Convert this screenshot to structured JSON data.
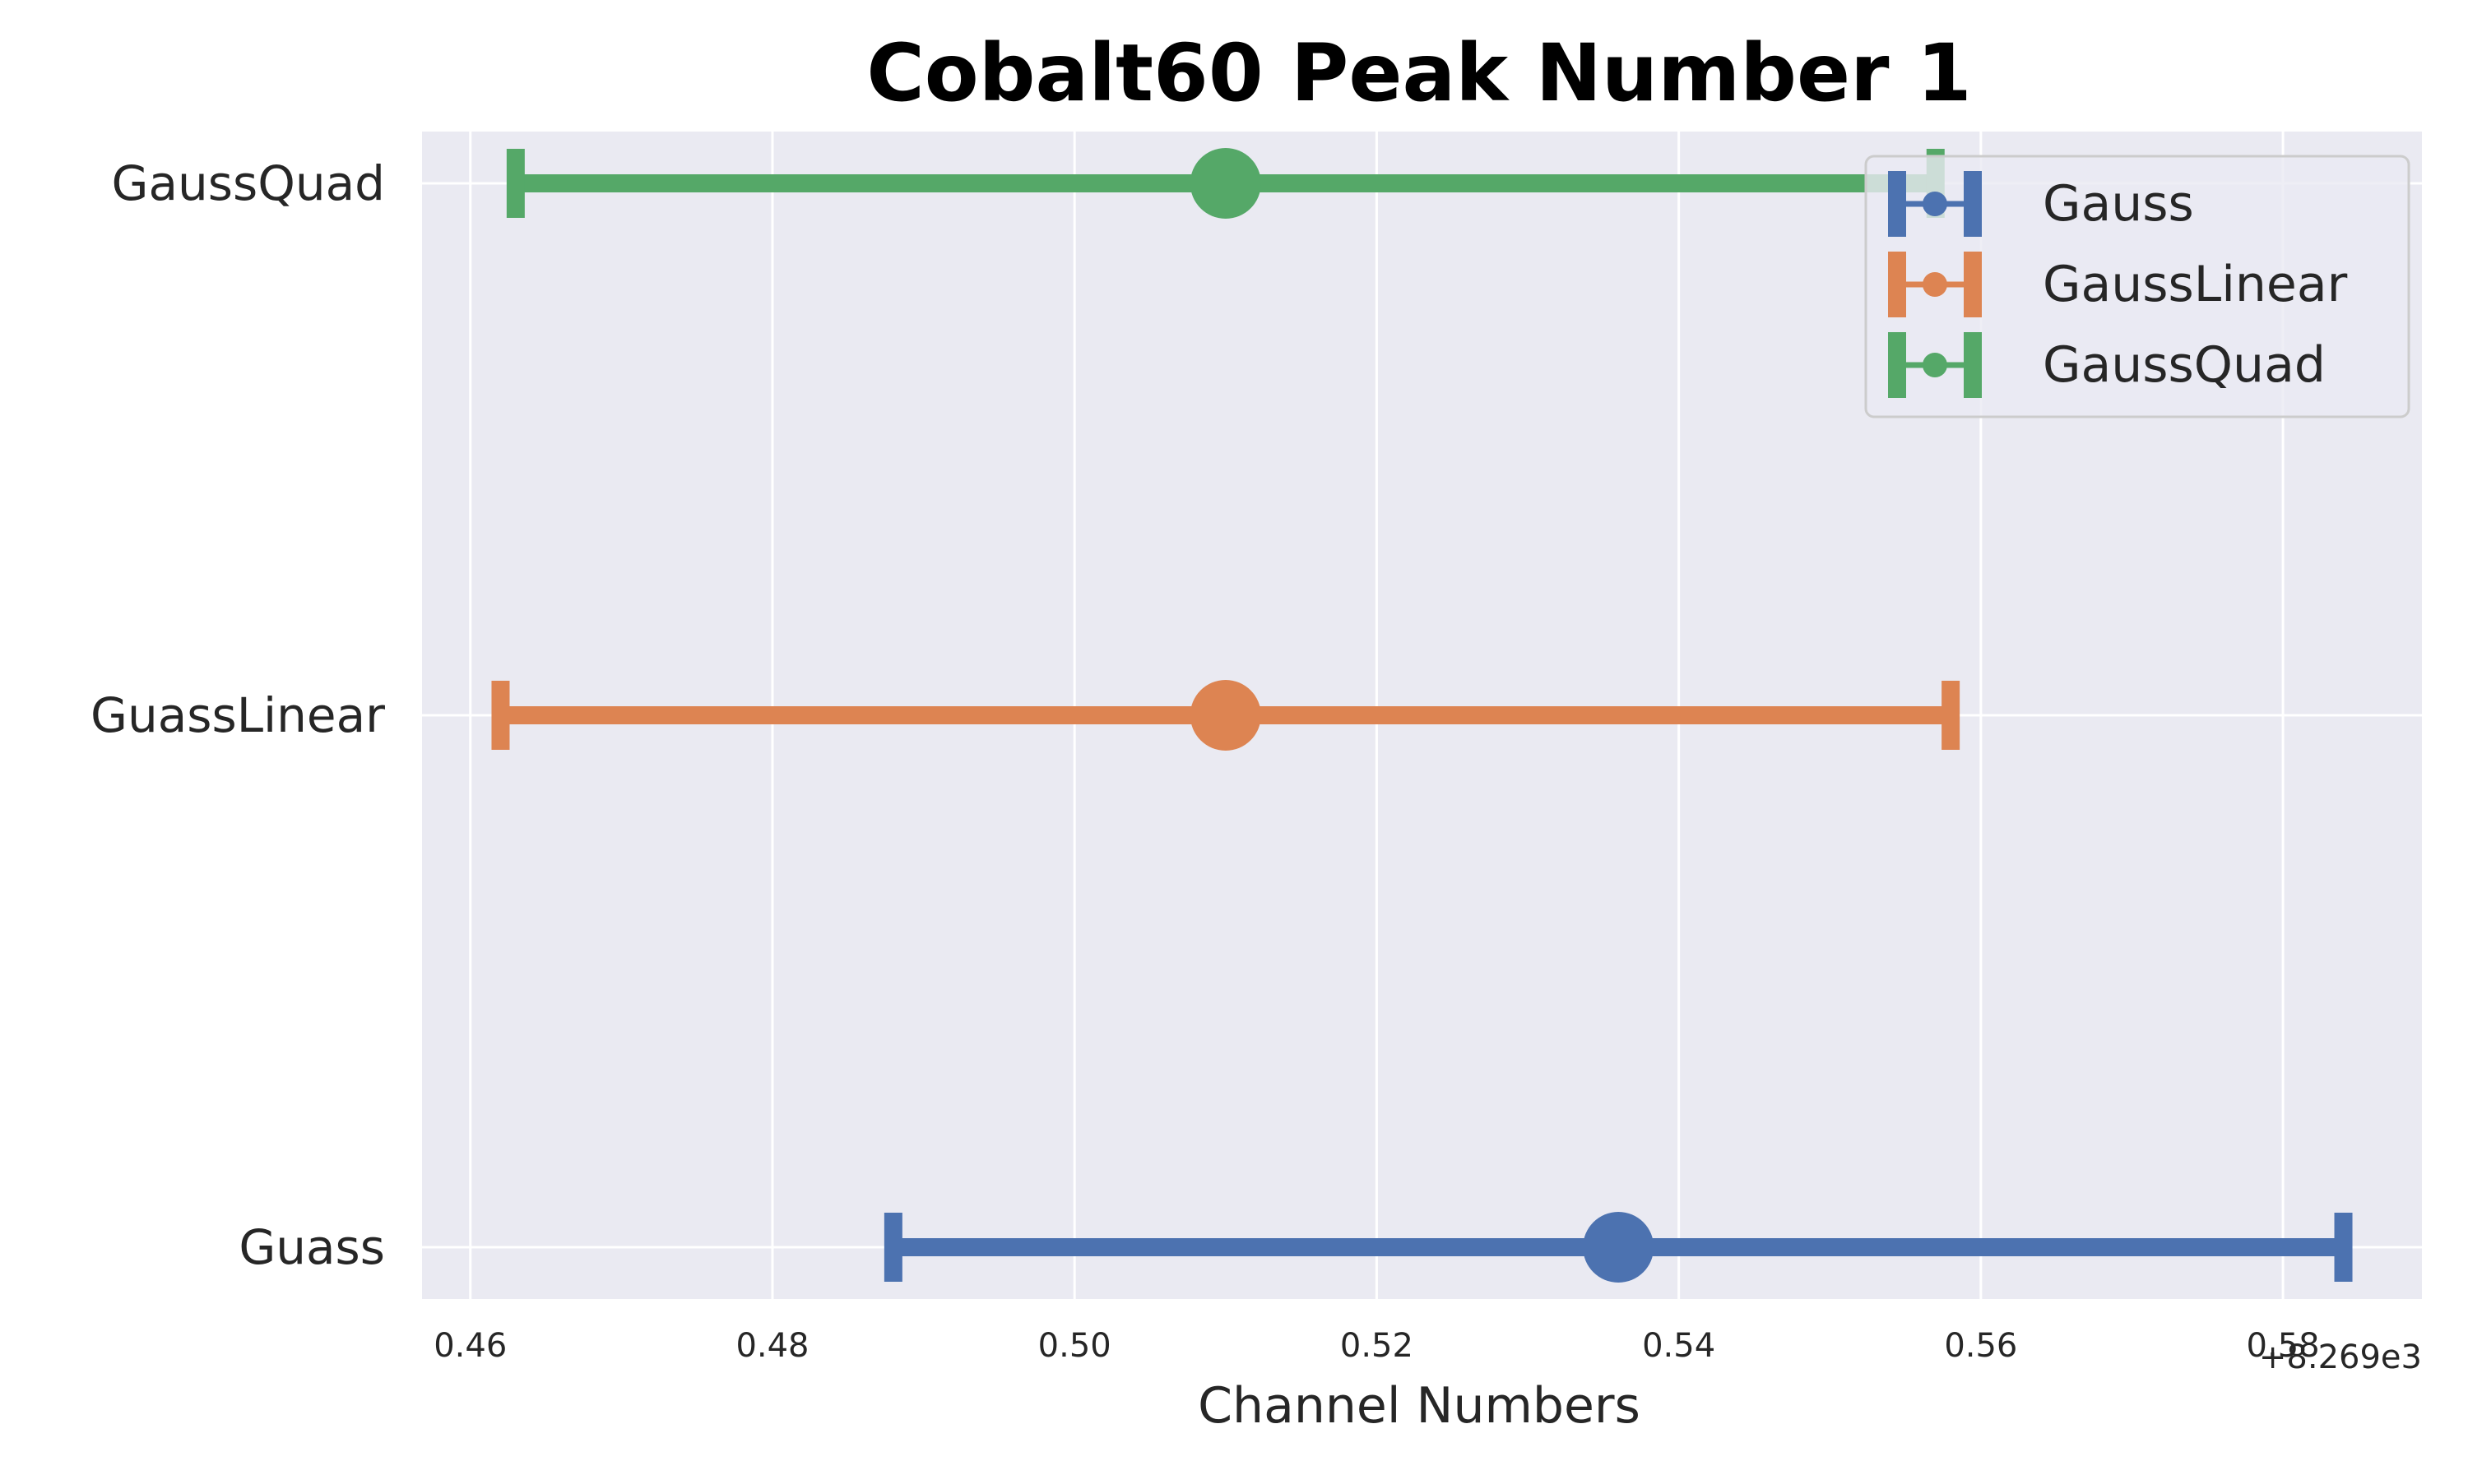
{
  "chart_data": {
    "type": "errorbar",
    "title": "Cobalt60 Peak Number 1",
    "xlabel": "Channel Numbers",
    "ylabel": "",
    "x_offset_label": "+8.269e3",
    "x_offset": 8269,
    "xlim": [
      0.4568,
      0.5892
    ],
    "x_ticks": [
      0.46,
      0.48,
      0.5,
      0.52,
      0.54,
      0.56,
      0.58
    ],
    "x_tick_labels": [
      "0.46",
      "0.48",
      "0.50",
      "0.52",
      "0.54",
      "0.56",
      "0.58"
    ],
    "categories": [
      "Guass",
      "GuassLinear",
      "GaussQuad"
    ],
    "grid": true,
    "legend_position": "top-right",
    "background_color": "#EAEAF2",
    "series": [
      {
        "name": "Gauss",
        "category": "Guass",
        "x": 0.536,
        "xerr_low": 0.488,
        "xerr_high": 0.584,
        "color": "#4C72B0"
      },
      {
        "name": "GaussLinear",
        "category": "GuassLinear",
        "x": 0.51,
        "xerr_low": 0.462,
        "xerr_high": 0.558,
        "color": "#DD8452"
      },
      {
        "name": "GaussQuad",
        "category": "GaussQuad",
        "x": 0.51,
        "xerr_low": 0.463,
        "xerr_high": 0.557,
        "color": "#55A868"
      }
    ]
  }
}
